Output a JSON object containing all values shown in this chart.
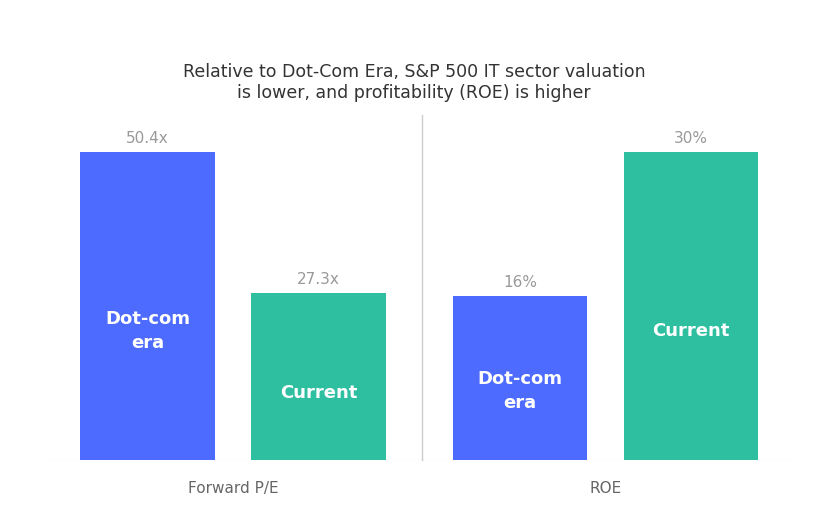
{
  "title": "Relative to Dot-Com Era, S&P 500 IT sector valuation\nis lower, and profitability (ROE) is higher",
  "title_fontsize": 12.5,
  "background_color": "#ffffff",
  "groups": [
    "Forward P/E",
    "ROE"
  ],
  "bar1_label": "Dot-com\nera",
  "bar2_label": "Current",
  "bar1_color": "#4d6bfe",
  "bar2_color": "#2dbfa0",
  "pe_dotcom": 50.4,
  "pe_current": 27.3,
  "roe_dotcom": 16,
  "roe_current": 30,
  "pe_dotcom_label": "50.4x",
  "pe_current_label": "27.3x",
  "roe_dotcom_label": "16%",
  "roe_current_label": "30%",
  "label_color": "#999999",
  "label_fontsize": 11,
  "bar_text_color": "#ffffff",
  "bar_text_fontsize": 13,
  "group_label_fontsize": 11,
  "group_label_color": "#666666",
  "separator_color": "#cccccc",
  "baseline_color": "#cccccc"
}
